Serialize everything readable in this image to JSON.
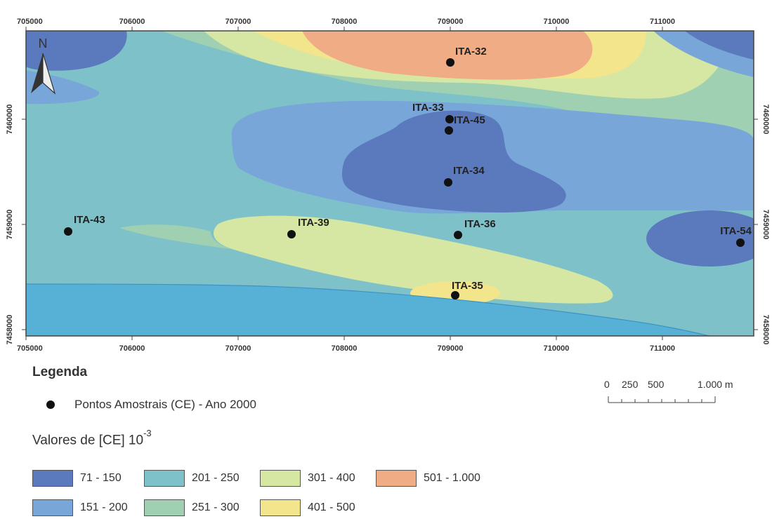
{
  "map": {
    "x_ticks": [
      "705000",
      "706000",
      "707000",
      "708000",
      "709000",
      "710000",
      "711000"
    ],
    "y_ticks": [
      "7460000",
      "7459000",
      "7458000"
    ],
    "north_label": "N",
    "points": [
      {
        "name": "ITA-32"
      },
      {
        "name": "ITA-33"
      },
      {
        "name": "ITA-45"
      },
      {
        "name": "ITA-34"
      },
      {
        "name": "ITA-43"
      },
      {
        "name": "ITA-39"
      },
      {
        "name": "ITA-36"
      },
      {
        "name": "ITA-54"
      },
      {
        "name": "ITA-35"
      }
    ],
    "class_colors": {
      "71-150": "#5b79bd",
      "151-200": "#78a6d9",
      "201-250": "#7fc1c9",
      "251-300": "#9fd0b2",
      "301-400": "#d6e7a3",
      "401-500": "#f2e58c",
      "501-1000": "#f0ad85"
    }
  },
  "legend": {
    "title": "Legenda",
    "points_label": "Pontos Amostrais (CE) - Ano 2000",
    "values_title": "Valores de [CE] 10",
    "values_exponent": "-3",
    "classes": [
      {
        "label": "71 - 150",
        "color": "#5b79bd"
      },
      {
        "label": "151 - 200",
        "color": "#78a6d9"
      },
      {
        "label": "201 - 250",
        "color": "#7fc1c9"
      },
      {
        "label": "251 - 300",
        "color": "#9fd0b2"
      },
      {
        "label": "301 - 400",
        "color": "#d6e7a3"
      },
      {
        "label": "401 - 500",
        "color": "#f2e58c"
      },
      {
        "label": "501 - 1.000",
        "color": "#f0ad85"
      }
    ]
  },
  "scale": {
    "labels": [
      "0",
      "250",
      "500",
      "1.000 m"
    ]
  }
}
